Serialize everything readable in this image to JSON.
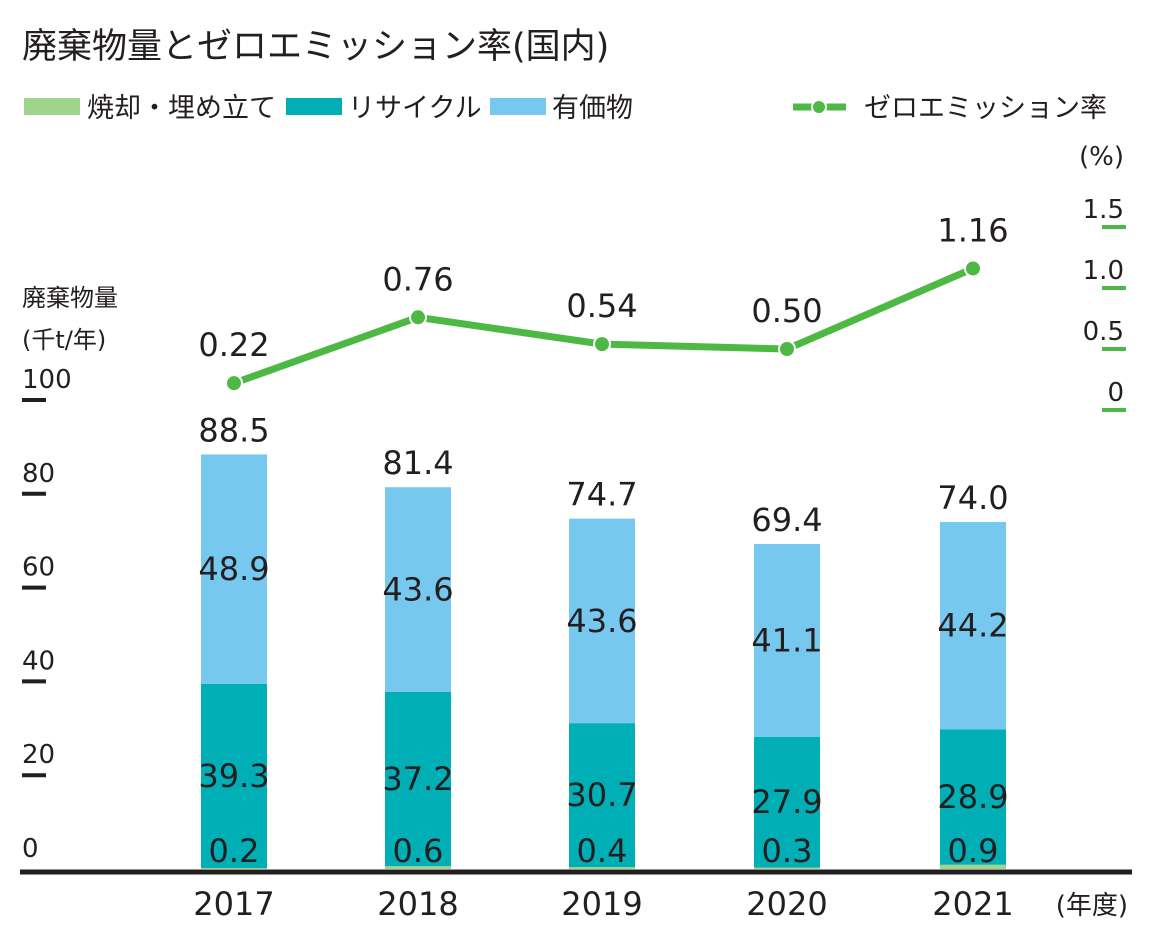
{
  "chart_data": {
    "type": "bar",
    "title": "廃棄物量とゼロエミッション率(国内)",
    "categories": [
      "2017",
      "2018",
      "2019",
      "2020",
      "2021"
    ],
    "x_unit": "(年度)",
    "y_left": {
      "label_line1": "廃棄物量",
      "label_line2": "(千t/年)",
      "range": [
        0,
        100
      ],
      "ticks": [
        "0",
        "20",
        "40",
        "60",
        "80",
        "100"
      ]
    },
    "y_right": {
      "unit": "(%)",
      "range": [
        0,
        1.5
      ],
      "ticks": [
        "0",
        "0.5",
        "1.0",
        "1.5"
      ]
    },
    "series": [
      {
        "name": "焼却・埋め立て",
        "kind": "bar",
        "color": "#9fd48a",
        "values": [
          0.2,
          0.6,
          0.4,
          0.3,
          0.9
        ],
        "labels": [
          "0.2",
          "0.6",
          "0.4",
          "0.3",
          "0.9"
        ]
      },
      {
        "name": "リサイクル",
        "kind": "bar",
        "color": "#00aeb6",
        "values": [
          39.3,
          37.2,
          30.7,
          27.9,
          28.9
        ],
        "labels": [
          "39.3",
          "37.2",
          "30.7",
          "27.9",
          "28.9"
        ]
      },
      {
        "name": "有価物",
        "kind": "bar",
        "color": "#76c8ef",
        "values": [
          48.9,
          43.6,
          43.6,
          41.1,
          44.2
        ],
        "labels": [
          "48.9",
          "43.6",
          "43.6",
          "41.1",
          "44.2"
        ]
      },
      {
        "name": "ゼロエミッション率",
        "kind": "line",
        "axis": "right",
        "color": "#4db843",
        "values": [
          0.22,
          0.76,
          0.54,
          0.5,
          1.16
        ],
        "labels": [
          "0.22",
          "0.76",
          "0.54",
          "0.50",
          "1.16"
        ]
      }
    ],
    "totals": [
      "88.5",
      "81.4",
      "74.7",
      "69.4",
      "74.0"
    ],
    "legend_position": "top"
  }
}
